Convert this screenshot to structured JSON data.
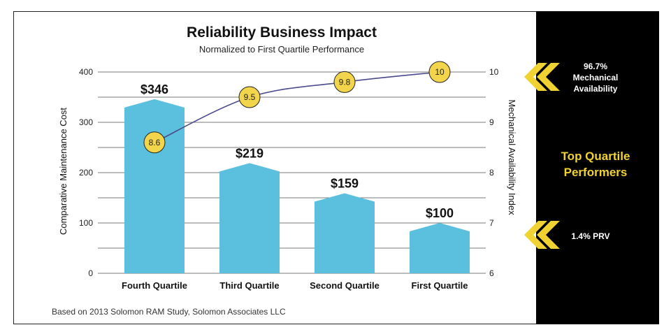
{
  "chart_data": {
    "type": "bar",
    "title": "Reliability Business Impact",
    "subtitle": "Normalized to First Quartile Performance",
    "categories": [
      "Fourth Quartile",
      "Third Quartile",
      "Second Quartile",
      "First Quartile"
    ],
    "series": [
      {
        "name": "Comparative Maintenance Cost",
        "axis": "left",
        "type": "bar",
        "values": [
          346,
          219,
          159,
          100
        ],
        "value_labels": [
          "$346",
          "$219",
          "$159",
          "$100"
        ]
      },
      {
        "name": "Mechanical Availability Index",
        "axis": "right",
        "type": "line",
        "values": [
          8.6,
          9.5,
          9.8,
          10
        ],
        "point_labels": [
          "8.6",
          "9.5",
          "9.8",
          "10"
        ]
      }
    ],
    "ylabel": "Comparative Maintenance Cost",
    "ylim": [
      0,
      400
    ],
    "yticks": [
      0,
      100,
      200,
      300,
      400
    ],
    "ytick_labels": [
      "0",
      "100",
      "200",
      "300",
      "400"
    ],
    "y2label": "Mechanical Availability Index",
    "y2lim": [
      6,
      10
    ],
    "y2ticks": [
      6,
      7,
      8,
      9,
      10
    ],
    "y2tick_labels": [
      "6",
      "7",
      "8",
      "9",
      "10"
    ],
    "grid": true,
    "footnote": "Based on 2013 Solomon RAM Study, Solomon Associates LLC"
  },
  "side_panel": {
    "availability_line1": "96.7%",
    "availability_line2": "Mechanical",
    "availability_line3": "Availability",
    "top_line1": "Top Quartile",
    "top_line2": "Performers",
    "prv": "1.4% PRV"
  },
  "colors": {
    "bar": "#5bbfde",
    "point_fill": "#f2d54a",
    "point_stroke": "#222222",
    "line": "#4a4a8c",
    "chevron": "#f0d232",
    "panel_bg": "#000000",
    "grid": "#7a7a7a"
  }
}
